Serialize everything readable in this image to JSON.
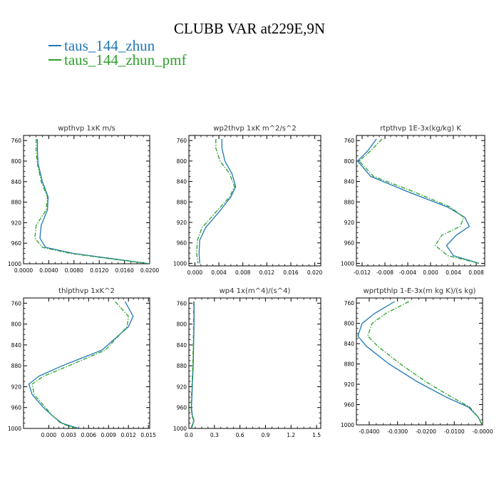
{
  "title": "CLUBB VAR at229E,9N",
  "legend": [
    {
      "name": "taus_144_zhun",
      "color": "#1f77b4",
      "dash": "solid"
    },
    {
      "name": "taus_144_zhun_pmf",
      "color": "#2ca02c",
      "dash": "dashdot"
    }
  ],
  "chart_data": [
    {
      "type": "line",
      "title": "wpthvp  1xK m/s",
      "xlim": [
        0,
        0.02
      ],
      "xticks": [
        "0.0000",
        "0.0040",
        "0.0080",
        "0.0120",
        "0.0160",
        "0.0200"
      ],
      "ylim": [
        1000,
        750
      ],
      "yticks": [
        "760",
        "800",
        "840",
        "880",
        "920",
        "960",
        "1000"
      ],
      "series": [
        {
          "name": "taus_144_zhun",
          "x": [
            0.0022,
            0.0022,
            0.0023,
            0.003,
            0.0039,
            0.0038,
            0.0028,
            0.0026,
            0.0035,
            0.008,
            0.014,
            0.02
          ],
          "y": [
            757,
            780,
            805,
            840,
            870,
            895,
            925,
            950,
            968,
            980,
            990,
            1000
          ]
        },
        {
          "name": "taus_144_zhun_pmf",
          "x": [
            0.002,
            0.002,
            0.0022,
            0.0028,
            0.0038,
            0.0036,
            0.002,
            0.0018,
            0.003,
            0.0075,
            0.0135,
            0.02
          ],
          "y": [
            757,
            780,
            805,
            840,
            870,
            895,
            925,
            950,
            968,
            980,
            990,
            1000
          ]
        }
      ]
    },
    {
      "type": "line",
      "title": "wp2thvp  1xK m^2/s^2",
      "xlim": [
        -0.001,
        0.021
      ],
      "xticks": [
        "0.000",
        "0.004",
        "0.008",
        "0.012",
        "0.016",
        "0.020"
      ],
      "ylim": [
        1005,
        750
      ],
      "yticks": [
        "760",
        "800",
        "840",
        "880",
        "920",
        "960",
        "1000"
      ],
      "series": [
        {
          "name": "taus_144_zhun",
          "x": [
            0.0045,
            0.0045,
            0.005,
            0.0062,
            0.0068,
            0.006,
            0.004,
            0.0018,
            0.0008,
            0.0007,
            0.0008
          ],
          "y": [
            757,
            775,
            800,
            825,
            850,
            870,
            900,
            930,
            955,
            980,
            1000
          ]
        },
        {
          "name": "taus_144_zhun_pmf",
          "x": [
            0.0035,
            0.0035,
            0.0042,
            0.0058,
            0.0066,
            0.0058,
            0.0035,
            0.0012,
            0.0004,
            0.0003,
            0.0005
          ],
          "y": [
            757,
            775,
            800,
            825,
            850,
            870,
            900,
            930,
            955,
            980,
            1000
          ]
        }
      ]
    },
    {
      "type": "line",
      "title": "rtpthvp  1E-3x(kg/kg) K",
      "xlim": [
        -0.013,
        0.0095
      ],
      "xticks": [
        "-0.012",
        "-0.008",
        "-0.004",
        "0.000",
        "0.004",
        "0.008"
      ],
      "ylim": [
        1005,
        750
      ],
      "yticks": [
        "760",
        "800",
        "840",
        "880",
        "920",
        "960",
        "1000"
      ],
      "series": [
        {
          "name": "taus_144_zhun",
          "x": [
            -0.0095,
            -0.011,
            -0.0128,
            -0.0105,
            -0.004,
            0.003,
            0.006,
            0.0068,
            0.0045,
            0.0028,
            0.004,
            0.0085
          ],
          "y": [
            757,
            780,
            800,
            830,
            860,
            890,
            910,
            928,
            945,
            965,
            985,
            1000
          ]
        },
        {
          "name": "taus_144_zhun_pmf",
          "x": [
            -0.0085,
            -0.0105,
            -0.0125,
            -0.01,
            -0.003,
            0.0035,
            0.0058,
            0.0052,
            0.002,
            0.0008,
            0.003,
            0.0085
          ],
          "y": [
            757,
            780,
            800,
            830,
            860,
            890,
            910,
            928,
            945,
            965,
            985,
            1000
          ]
        }
      ]
    },
    {
      "type": "line",
      "title": "thlpthvp  1xK^2",
      "xlim": [
        -0.0038,
        0.0152
      ],
      "xticks": [
        "0.000",
        "0.003",
        "0.006",
        "0.009",
        "0.012",
        "0.015"
      ],
      "ylim": [
        1000,
        750
      ],
      "yticks": [
        "760",
        "800",
        "840",
        "880",
        "920",
        "960",
        "1000"
      ],
      "series": [
        {
          "name": "taus_144_zhun",
          "x": [
            0.0115,
            0.0127,
            0.012,
            0.008,
            0.002,
            -0.0015,
            -0.003,
            -0.0025,
            -0.0008,
            0.0005,
            0.002,
            0.0045
          ],
          "y": [
            757,
            785,
            805,
            850,
            880,
            900,
            915,
            935,
            960,
            975,
            990,
            1000
          ]
        },
        {
          "name": "taus_144_zhun_pmf",
          "x": [
            0.01,
            0.012,
            0.0118,
            0.0085,
            0.003,
            -0.0008,
            -0.0025,
            -0.0022,
            -0.0005,
            0.0005,
            0.0018,
            0.004
          ],
          "y": [
            757,
            785,
            805,
            850,
            880,
            900,
            915,
            935,
            960,
            975,
            990,
            1000
          ]
        }
      ]
    },
    {
      "type": "line",
      "title": "wp4  1x(m^4)/(s^4)",
      "xlim": [
        0,
        1.55
      ],
      "xticks": [
        "0.0",
        "0.3",
        "0.6",
        "0.9",
        "1.2",
        "1.5"
      ],
      "ylim": [
        1000,
        750
      ],
      "yticks": [
        "760",
        "800",
        "840",
        "880",
        "920",
        "960",
        "1000"
      ],
      "series": [
        {
          "name": "taus_144_zhun",
          "x": [
            0.06,
            0.06,
            0.055,
            0.05,
            0.045,
            0.04,
            0.035,
            0.03,
            0.04,
            0.06,
            0.03
          ],
          "y": [
            757,
            800,
            840,
            880,
            900,
            920,
            940,
            960,
            975,
            985,
            1000
          ]
        },
        {
          "name": "taus_144_zhun_pmf",
          "x": [
            0.055,
            0.055,
            0.05,
            0.045,
            0.04,
            0.035,
            0.03,
            0.025,
            0.035,
            0.055,
            0.025
          ],
          "y": [
            757,
            800,
            840,
            880,
            900,
            920,
            940,
            960,
            975,
            985,
            1000
          ]
        }
      ]
    },
    {
      "type": "line",
      "title": "wprtpthlp  1-E-3x(m kg K)/(s kg)",
      "xlim": [
        -0.0445,
        0.0
      ],
      "xticks": [
        "-0.0400",
        "-0.0300",
        "-0.0200",
        "-0.0100",
        "-0.0000"
      ],
      "ylim": [
        1000,
        750
      ],
      "yticks": [
        "760",
        "800",
        "840",
        "880",
        "920",
        "960",
        "1000"
      ],
      "series": [
        {
          "name": "taus_144_zhun",
          "x": [
            -0.031,
            -0.038,
            -0.0425,
            -0.044,
            -0.041,
            -0.033,
            -0.023,
            -0.013,
            -0.005,
            -0.0015,
            -0.0002
          ],
          "y": [
            757,
            780,
            800,
            825,
            845,
            880,
            915,
            945,
            965,
            985,
            1000
          ]
        },
        {
          "name": "taus_144_zhun_pmf",
          "x": [
            -0.026,
            -0.034,
            -0.039,
            -0.0405,
            -0.037,
            -0.029,
            -0.02,
            -0.011,
            -0.0045,
            -0.0015,
            -0.0002
          ],
          "y": [
            757,
            780,
            800,
            825,
            845,
            880,
            915,
            945,
            965,
            985,
            1000
          ]
        }
      ]
    }
  ]
}
